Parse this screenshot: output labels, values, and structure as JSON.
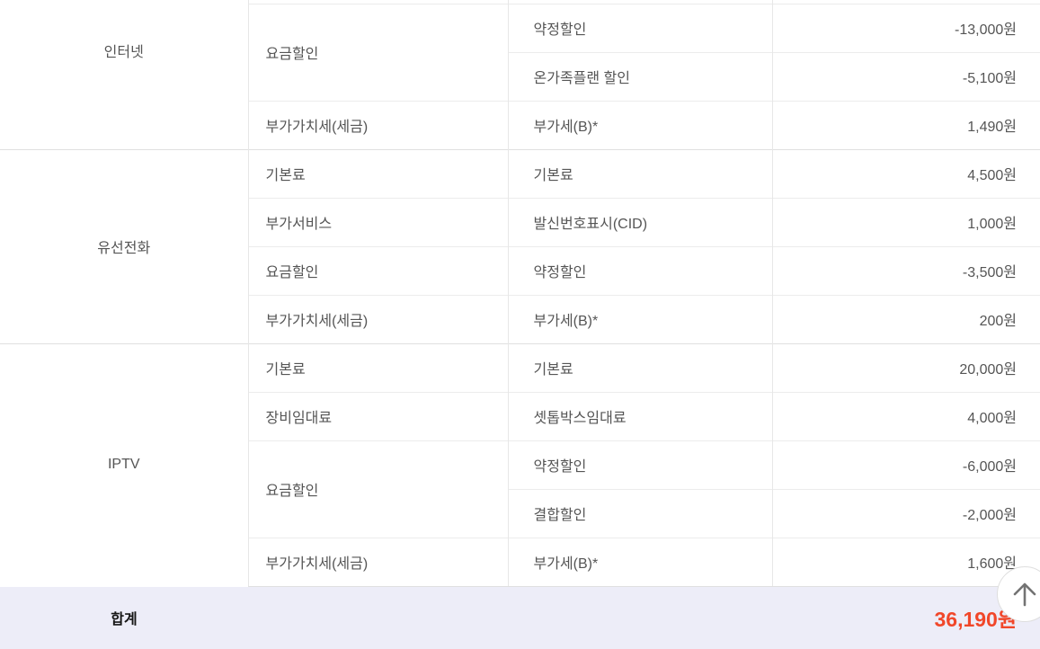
{
  "table": {
    "sections": [
      {
        "service": "인터넷",
        "clipped_at_top": true,
        "groups": [
          {
            "category": "요금할인",
            "items": [
              {
                "name": "약정할인",
                "amount": "-13,000원"
              },
              {
                "name": "온가족플랜 할인",
                "amount": "-5,100원"
              }
            ]
          },
          {
            "category": "부가가치세(세금)",
            "items": [
              {
                "name": "부가세(B)*",
                "amount": "1,490원"
              }
            ]
          }
        ]
      },
      {
        "service": "유선전화",
        "groups": [
          {
            "category": "기본료",
            "items": [
              {
                "name": "기본료",
                "amount": "4,500원"
              }
            ]
          },
          {
            "category": "부가서비스",
            "items": [
              {
                "name": "발신번호표시(CID)",
                "amount": "1,000원"
              }
            ]
          },
          {
            "category": "요금할인",
            "items": [
              {
                "name": "약정할인",
                "amount": "-3,500원"
              }
            ]
          },
          {
            "category": "부가가치세(세금)",
            "items": [
              {
                "name": "부가세(B)*",
                "amount": "200원"
              }
            ]
          }
        ]
      },
      {
        "service": "IPTV",
        "groups": [
          {
            "category": "기본료",
            "items": [
              {
                "name": "기본료",
                "amount": "20,000원"
              }
            ]
          },
          {
            "category": "장비임대료",
            "items": [
              {
                "name": "셋톱박스임대료",
                "amount": "4,000원"
              }
            ]
          },
          {
            "category": "요금할인",
            "items": [
              {
                "name": "약정할인",
                "amount": "-6,000원"
              },
              {
                "name": "결합할인",
                "amount": "-2,000원"
              }
            ]
          },
          {
            "category": "부가가치세(세금)",
            "items": [
              {
                "name": "부가세(B)*",
                "amount": "1,600원"
              }
            ]
          }
        ]
      }
    ]
  },
  "total": {
    "label": "합계",
    "amount": "36,190원"
  },
  "scroll_top": {
    "icon": "up-arrow"
  },
  "colors": {
    "total_amount_red": "#f1472a",
    "total_row_background": "#ededf8",
    "label_text": "#555555",
    "grid_line": "#e7e7e7"
  }
}
